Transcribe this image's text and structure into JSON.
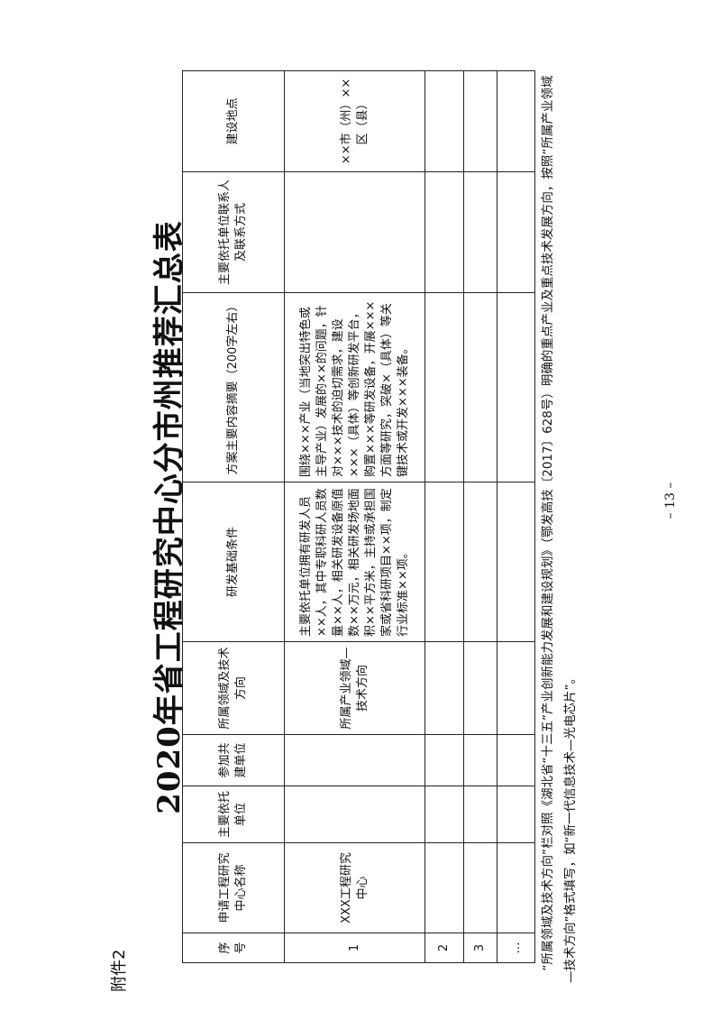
{
  "attachment_label": "附件2",
  "title": "2020年省工程研究中心分市州推荐汇总表",
  "table": {
    "headers": [
      "序号",
      "申请工程研究中心名称",
      "主要依托单位",
      "参加共建单位",
      "所属领域及技术方向",
      "研发基础条件",
      "方案主要内容摘要（200字左右）",
      "主要依托单位联系人及联系方式",
      "建设地点"
    ],
    "rows": [
      [
        "1",
        "XXX工程研究中心",
        "",
        "",
        "所属产业领域—技术方向",
        "主要依托单位拥有研发人员××人，其中专职科研人员数量××人，相关研发设备原值数××万元，相关研发场地面积××平方米，主持或承担国家或省科研项目××项，制定行业标准××项。",
        "围绕×××产业（当地突出特色或主导产业）发展的××的问题，针对×××技术的迫切需求，建设×××（具体）等创新研发平台，购置×××等研发设备，开展×××方面等研究，突破×（具体）等关键技术或开发×××装备。",
        "",
        "××市（州）××区（县）"
      ],
      [
        "2",
        "",
        "",
        "",
        "",
        "",
        "",
        "",
        ""
      ],
      [
        "3",
        "",
        "",
        "",
        "",
        "",
        "",
        "",
        ""
      ],
      [
        "…",
        "",
        "",
        "",
        "",
        "",
        "",
        "",
        ""
      ]
    ]
  },
  "footnote": "“所属领域及技术方向”栏对照《湖北省“十三五”产业创新能力发展和建设规划》（鄂发高技〔2017〕628号）明确的重点产业及重点技术发展方向，按照“所属产业领域—技术方向”格式填写，如“新一代信息技术—光电芯片”。",
  "page_number": "– 13 –"
}
